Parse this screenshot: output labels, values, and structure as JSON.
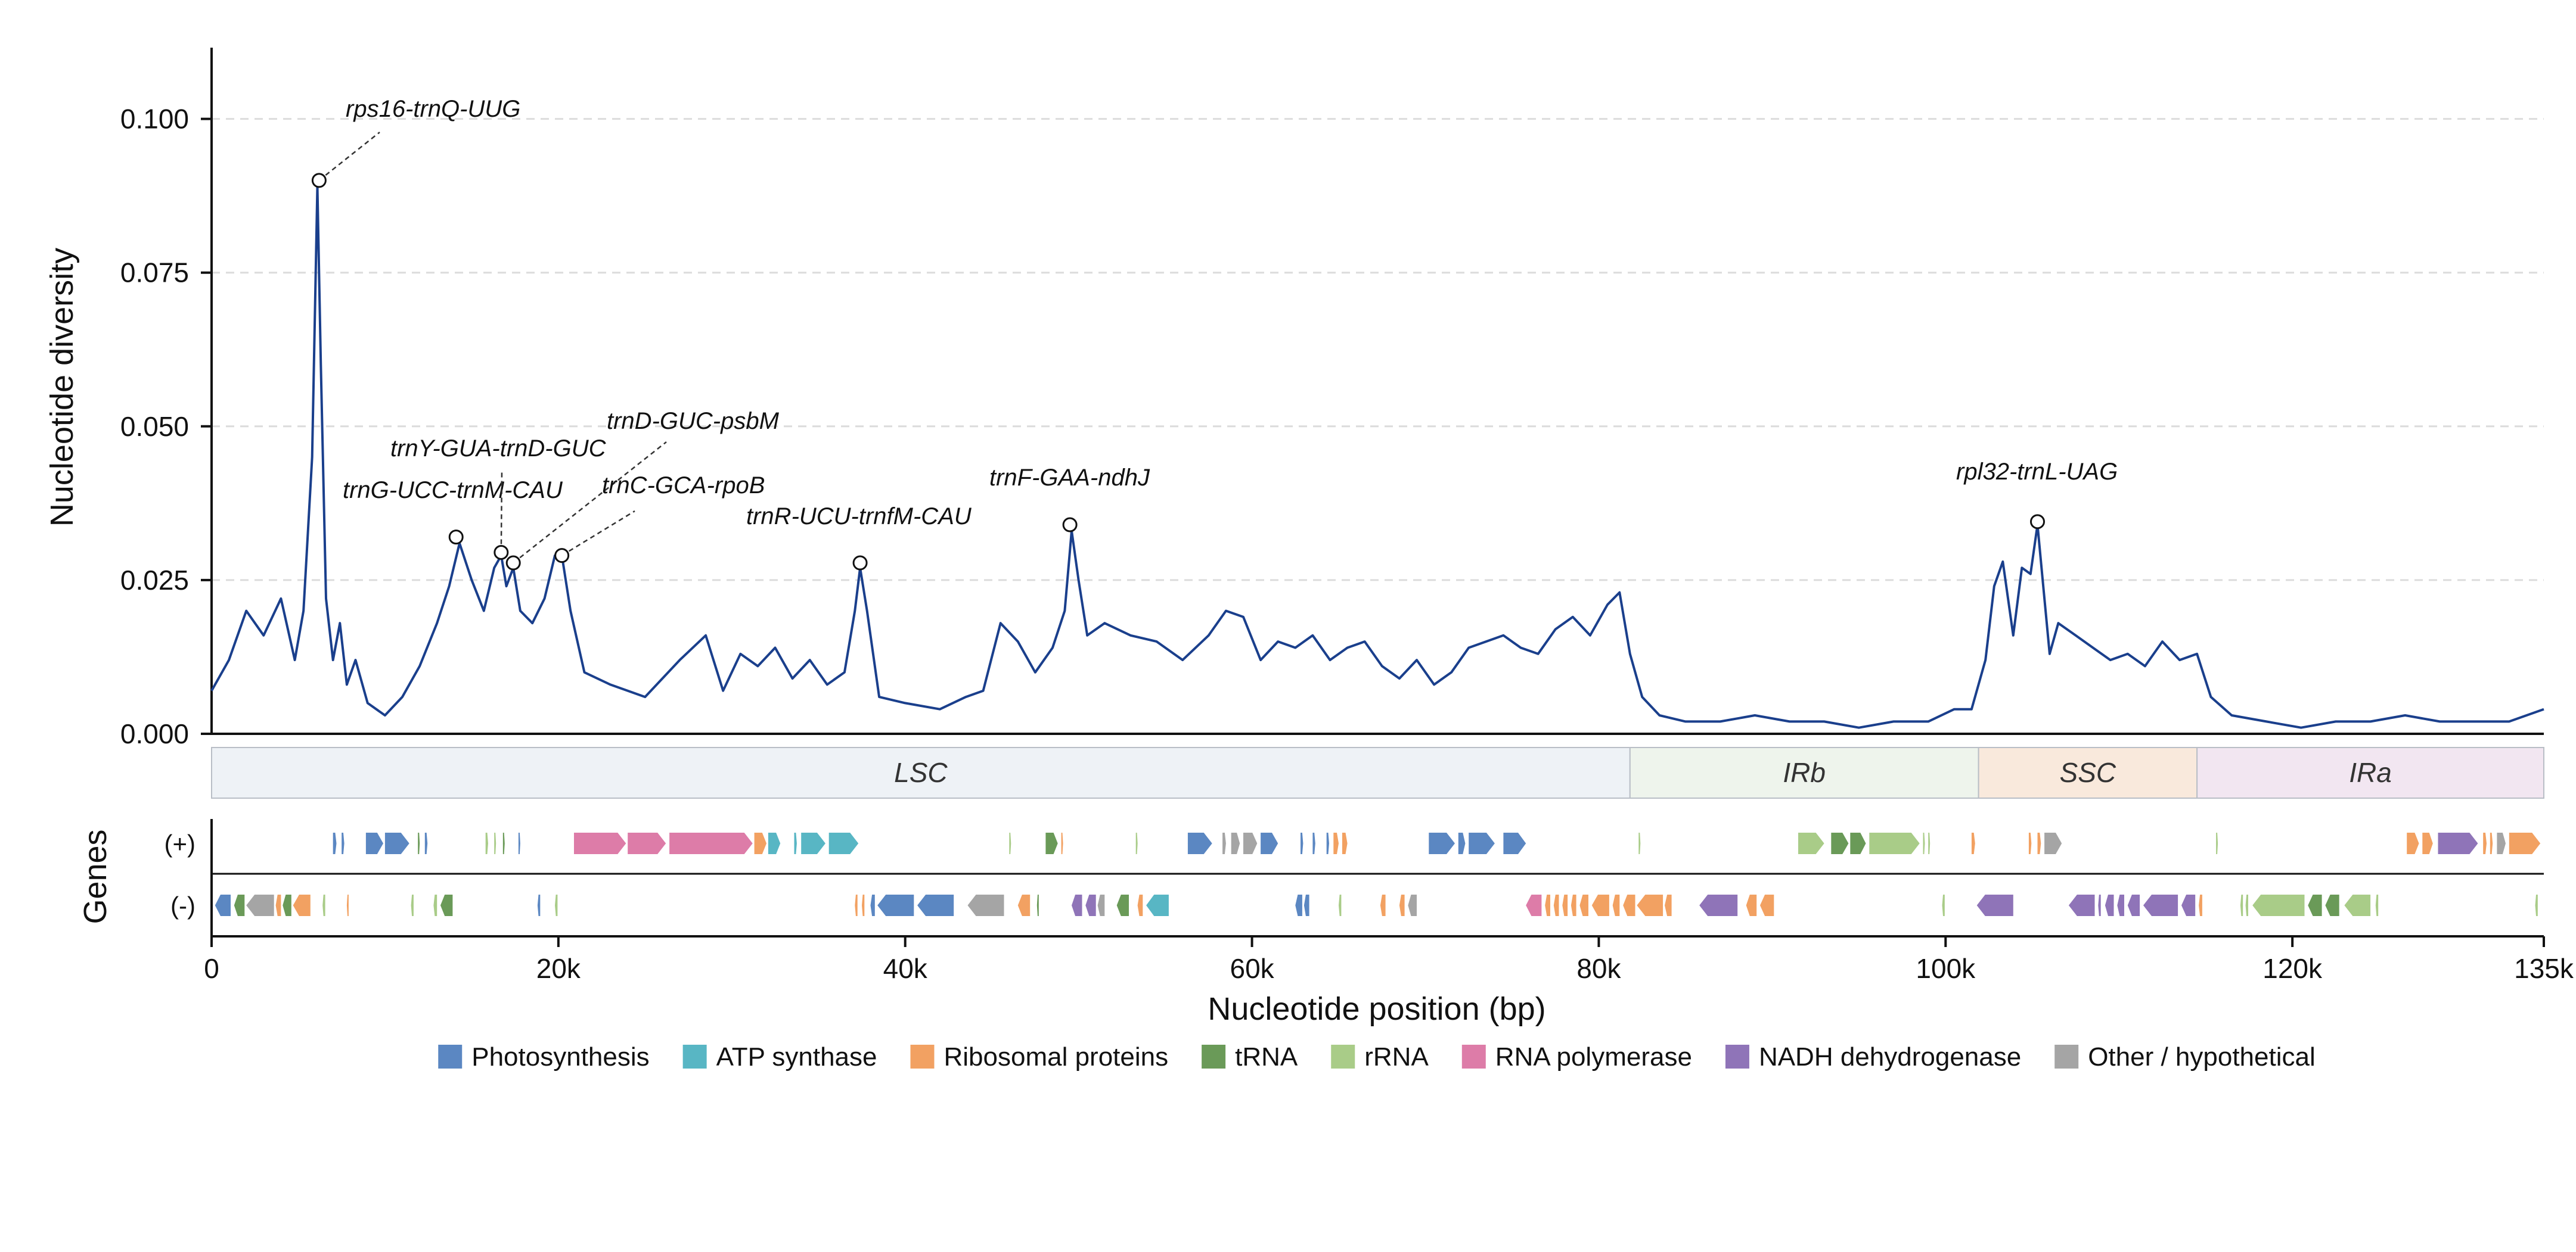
{
  "chart_data": {
    "type": "line",
    "title": "",
    "ylabel": "Nucleotide diversity",
    "xlabel": "Nucleotide position (bp)",
    "genes_label": "Genes",
    "strand_plus_label": "(+)",
    "strand_minus_label": "(-)",
    "xlim": [
      0,
      134500
    ],
    "ylim": [
      0,
      0.105
    ],
    "y_ticks": [
      {
        "value": 0.0,
        "label": "0.000"
      },
      {
        "value": 0.025,
        "label": "0.025"
      },
      {
        "value": 0.05,
        "label": "0.050"
      },
      {
        "value": 0.075,
        "label": "0.075"
      },
      {
        "value": 0.1,
        "label": "0.100"
      }
    ],
    "x_ticks": [
      {
        "value": 0,
        "label": "0"
      },
      {
        "value": 20000,
        "label": "20k"
      },
      {
        "value": 40000,
        "label": "40k"
      },
      {
        "value": 60000,
        "label": "60k"
      },
      {
        "value": 80000,
        "label": "80k"
      },
      {
        "value": 100000,
        "label": "100k"
      },
      {
        "value": 120000,
        "label": "120k"
      },
      {
        "value": 134500,
        "label": "135k"
      }
    ],
    "grid": "horizontal dashed",
    "line_color": "#1a3f8c",
    "series": [
      {
        "x": [
          0,
          1000,
          2000,
          3000,
          4000,
          4800,
          5300,
          5800,
          6100,
          6300,
          6600,
          7000,
          7400,
          7800,
          8300,
          9000,
          10000,
          11000,
          12000,
          13000,
          13700,
          14300,
          15000,
          15700,
          16300,
          16700,
          17000,
          17400,
          17800,
          18500,
          19200,
          19800,
          20200,
          20700,
          21500,
          23000,
          25000,
          27000,
          28500,
          29500,
          30500,
          31500,
          32500,
          33500,
          34500,
          35500,
          36500,
          37100,
          37400,
          37800,
          38500,
          40000,
          42000,
          43500,
          44500,
          45500,
          46500,
          47500,
          48500,
          49200,
          49600,
          50000,
          50500,
          51500,
          53000,
          54500,
          56000,
          57500,
          58500,
          59500,
          60500,
          61500,
          62500,
          63500,
          64500,
          65500,
          66500,
          67500,
          68500,
          69500,
          70500,
          71500,
          72500,
          73500,
          74500,
          75500,
          76500,
          77500,
          78500,
          79500,
          80500,
          81200,
          81800,
          82500,
          83500,
          85000,
          87000,
          89000,
          91000,
          93000,
          95000,
          97000,
          99000,
          100500,
          101500,
          102300,
          102800,
          103300,
          103900,
          104400,
          104900,
          105300,
          105600,
          106000,
          106500,
          107500,
          108500,
          109500,
          110500,
          111500,
          112500,
          113500,
          114500,
          115300,
          116500,
          118500,
          120500,
          122500,
          124500,
          126500,
          128500,
          130500,
          132500,
          134500
        ],
        "y": [
          0.007,
          0.012,
          0.02,
          0.016,
          0.022,
          0.012,
          0.02,
          0.045,
          0.089,
          0.06,
          0.022,
          0.012,
          0.018,
          0.008,
          0.012,
          0.005,
          0.003,
          0.006,
          0.011,
          0.018,
          0.024,
          0.031,
          0.025,
          0.02,
          0.027,
          0.029,
          0.024,
          0.027,
          0.02,
          0.018,
          0.022,
          0.029,
          0.029,
          0.02,
          0.01,
          0.008,
          0.006,
          0.012,
          0.016,
          0.007,
          0.013,
          0.011,
          0.014,
          0.009,
          0.012,
          0.008,
          0.01,
          0.02,
          0.027,
          0.02,
          0.006,
          0.005,
          0.004,
          0.006,
          0.007,
          0.018,
          0.015,
          0.01,
          0.014,
          0.02,
          0.033,
          0.025,
          0.016,
          0.018,
          0.016,
          0.015,
          0.012,
          0.016,
          0.02,
          0.019,
          0.012,
          0.015,
          0.014,
          0.016,
          0.012,
          0.014,
          0.015,
          0.011,
          0.009,
          0.012,
          0.008,
          0.01,
          0.014,
          0.015,
          0.016,
          0.014,
          0.013,
          0.017,
          0.019,
          0.016,
          0.021,
          0.023,
          0.013,
          0.006,
          0.003,
          0.002,
          0.002,
          0.003,
          0.002,
          0.002,
          0.001,
          0.002,
          0.002,
          0.004,
          0.004,
          0.012,
          0.024,
          0.028,
          0.016,
          0.027,
          0.026,
          0.034,
          0.025,
          0.013,
          0.018,
          0.016,
          0.014,
          0.012,
          0.013,
          0.011,
          0.015,
          0.012,
          0.013,
          0.006,
          0.003,
          0.002,
          0.001,
          0.002,
          0.002,
          0.003,
          0.002,
          0.002,
          0.002,
          0.004
        ]
      }
    ],
    "annotations": [
      {
        "label": "rps16-trnQ-UUG",
        "x": 6200,
        "y": 0.09
      },
      {
        "label": "trnG-UCC-trnM-CAU",
        "x": 14100,
        "y": 0.032
      },
      {
        "label": "trnY-GUA-trnD-GUC",
        "x": 16700,
        "y": 0.0295
      },
      {
        "label": "trnD-GUC-psbM",
        "x": 17400,
        "y": 0.0278
      },
      {
        "label": "trnC-GCA-rpoB",
        "x": 20200,
        "y": 0.029
      },
      {
        "label": "trnR-UCU-trnfM-CAU",
        "x": 37400,
        "y": 0.0278
      },
      {
        "label": "trnF-GAA-ndhJ",
        "x": 49500,
        "y": 0.034
      },
      {
        "label": "rpl32-trnL-UAG",
        "x": 105300,
        "y": 0.0345
      }
    ],
    "regions": [
      {
        "label": "LSC",
        "start": 0,
        "end": 81800,
        "color": "#eef2f6"
      },
      {
        "label": "IRb",
        "start": 81800,
        "end": 101900,
        "color": "#eef4ec"
      },
      {
        "label": "SSC",
        "start": 101900,
        "end": 114500,
        "color": "#f9e9dc"
      },
      {
        "label": "IRa",
        "start": 114500,
        "end": 134500,
        "color": "#f2e6f1"
      }
    ],
    "gene_categories": [
      {
        "key": "photo",
        "label": "Photosynthesis",
        "color": "#5b87c2"
      },
      {
        "key": "atp",
        "label": "ATP synthase",
        "color": "#58b6c4"
      },
      {
        "key": "ribo",
        "label": "Ribosomal proteins",
        "color": "#f2a162"
      },
      {
        "key": "trna",
        "label": "tRNA",
        "color": "#6a9a58"
      },
      {
        "key": "rrna",
        "label": "rRNA",
        "color": "#a9cc88"
      },
      {
        "key": "rnapol",
        "label": "RNA polymerase",
        "color": "#dd7ca8"
      },
      {
        "key": "ndh",
        "label": "NADH dehydrogenase",
        "color": "#8f74b8"
      },
      {
        "key": "other",
        "label": "Other / hypothetical",
        "color": "#a5a5a5"
      }
    ],
    "genes_plus": [
      {
        "s": 7000,
        "e": 7200,
        "c": "photo"
      },
      {
        "s": 7500,
        "e": 7650,
        "c": "photo"
      },
      {
        "s": 8900,
        "e": 9900,
        "c": "photo"
      },
      {
        "s": 10000,
        "e": 11400,
        "c": "photo"
      },
      {
        "s": 11900,
        "e": 12000,
        "c": "trna"
      },
      {
        "s": 12300,
        "e": 12450,
        "c": "photo"
      },
      {
        "s": 15800,
        "e": 15950,
        "c": "rrna"
      },
      {
        "s": 16300,
        "e": 16400,
        "c": "rrna"
      },
      {
        "s": 16800,
        "e": 16900,
        "c": "trna"
      },
      {
        "s": 17700,
        "e": 17800,
        "c": "photo"
      },
      {
        "s": 20900,
        "e": 23900,
        "c": "rnapol"
      },
      {
        "s": 24000,
        "e": 26200,
        "c": "rnapol"
      },
      {
        "s": 26400,
        "e": 31200,
        "c": "rnapol"
      },
      {
        "s": 31300,
        "e": 32000,
        "c": "ribo"
      },
      {
        "s": 32100,
        "e": 32800,
        "c": "atp"
      },
      {
        "s": 33600,
        "e": 33750,
        "c": "atp"
      },
      {
        "s": 34000,
        "e": 35400,
        "c": "atp"
      },
      {
        "s": 35600,
        "e": 37300,
        "c": "atp"
      },
      {
        "s": 46000,
        "e": 46100,
        "c": "rrna"
      },
      {
        "s": 48100,
        "e": 48800,
        "c": "trna"
      },
      {
        "s": 49000,
        "e": 49100,
        "c": "ribo"
      },
      {
        "s": 53300,
        "e": 53400,
        "c": "rrna"
      },
      {
        "s": 56300,
        "e": 57700,
        "c": "photo"
      },
      {
        "s": 58300,
        "e": 58500,
        "c": "other"
      },
      {
        "s": 58800,
        "e": 59300,
        "c": "other"
      },
      {
        "s": 59500,
        "e": 60300,
        "c": "other"
      },
      {
        "s": 60500,
        "e": 61500,
        "c": "photo"
      },
      {
        "s": 62800,
        "e": 62950,
        "c": "photo"
      },
      {
        "s": 63500,
        "e": 63650,
        "c": "photo"
      },
      {
        "s": 64300,
        "e": 64450,
        "c": "photo"
      },
      {
        "s": 64700,
        "e": 65000,
        "c": "ribo"
      },
      {
        "s": 65200,
        "e": 65500,
        "c": "ribo"
      },
      {
        "s": 70200,
        "e": 71700,
        "c": "photo"
      },
      {
        "s": 71900,
        "e": 72300,
        "c": "photo"
      },
      {
        "s": 72500,
        "e": 74000,
        "c": "photo"
      },
      {
        "s": 74500,
        "e": 75800,
        "c": "photo"
      },
      {
        "s": 82300,
        "e": 82400,
        "c": "rrna"
      },
      {
        "s": 91500,
        "e": 93000,
        "c": "rrna"
      },
      {
        "s": 93400,
        "e": 94400,
        "c": "trna"
      },
      {
        "s": 94500,
        "e": 95400,
        "c": "trna"
      },
      {
        "s": 95600,
        "e": 98500,
        "c": "rrna"
      },
      {
        "s": 98700,
        "e": 98800,
        "c": "rrna"
      },
      {
        "s": 99000,
        "e": 99100,
        "c": "rrna"
      },
      {
        "s": 101500,
        "e": 101700,
        "c": "ribo"
      },
      {
        "s": 104800,
        "e": 104950,
        "c": "ribo"
      },
      {
        "s": 105300,
        "e": 105500,
        "c": "ribo"
      },
      {
        "s": 105700,
        "e": 106700,
        "c": "other"
      },
      {
        "s": 115600,
        "e": 115700,
        "c": "rrna"
      },
      {
        "s": 126600,
        "e": 127300,
        "c": "ribo"
      },
      {
        "s": 127500,
        "e": 128100,
        "c": "ribo"
      },
      {
        "s": 128400,
        "e": 130700,
        "c": "ndh"
      },
      {
        "s": 131000,
        "e": 131200,
        "c": "ribo"
      },
      {
        "s": 131400,
        "e": 131550,
        "c": "ribo"
      },
      {
        "s": 131800,
        "e": 132300,
        "c": "other"
      },
      {
        "s": 132500,
        "e": 134300,
        "c": "ribo"
      }
    ],
    "genes_minus": [
      {
        "s": 200,
        "e": 1100,
        "c": "photo"
      },
      {
        "s": 1300,
        "e": 1900,
        "c": "trna"
      },
      {
        "s": 2000,
        "e": 3600,
        "c": "other"
      },
      {
        "s": 3700,
        "e": 4000,
        "c": "ribo"
      },
      {
        "s": 4100,
        "e": 4600,
        "c": "trna"
      },
      {
        "s": 4700,
        "e": 5700,
        "c": "ribo"
      },
      {
        "s": 6400,
        "e": 6550,
        "c": "rrna"
      },
      {
        "s": 7800,
        "e": 7900,
        "c": "ribo"
      },
      {
        "s": 11500,
        "e": 11650,
        "c": "rrna"
      },
      {
        "s": 12800,
        "e": 13000,
        "c": "rrna"
      },
      {
        "s": 13200,
        "e": 13900,
        "c": "trna"
      },
      {
        "s": 18800,
        "e": 18950,
        "c": "photo"
      },
      {
        "s": 19800,
        "e": 19950,
        "c": "rrna"
      },
      {
        "s": 37100,
        "e": 37250,
        "c": "ribo"
      },
      {
        "s": 37500,
        "e": 37650,
        "c": "ribo"
      },
      {
        "s": 38000,
        "e": 38250,
        "c": "photo"
      },
      {
        "s": 38400,
        "e": 40500,
        "c": "photo"
      },
      {
        "s": 40700,
        "e": 42800,
        "c": "photo"
      },
      {
        "s": 43600,
        "e": 45700,
        "c": "other"
      },
      {
        "s": 46500,
        "e": 47200,
        "c": "ribo"
      },
      {
        "s": 47600,
        "e": 47700,
        "c": "trna"
      },
      {
        "s": 49600,
        "e": 50200,
        "c": "ndh"
      },
      {
        "s": 50400,
        "e": 51000,
        "c": "ndh"
      },
      {
        "s": 51100,
        "e": 51500,
        "c": "other"
      },
      {
        "s": 52200,
        "e": 52900,
        "c": "trna"
      },
      {
        "s": 53400,
        "e": 53700,
        "c": "ribo"
      },
      {
        "s": 53900,
        "e": 55200,
        "c": "atp"
      },
      {
        "s": 62500,
        "e": 62900,
        "c": "photo"
      },
      {
        "s": 63000,
        "e": 63300,
        "c": "photo"
      },
      {
        "s": 65000,
        "e": 65150,
        "c": "rrna"
      },
      {
        "s": 67400,
        "e": 67700,
        "c": "ribo"
      },
      {
        "s": 68500,
        "e": 68800,
        "c": "ribo"
      },
      {
        "s": 69000,
        "e": 69500,
        "c": "other"
      },
      {
        "s": 75800,
        "e": 76700,
        "c": "rnapol"
      },
      {
        "s": 76900,
        "e": 77200,
        "c": "ribo"
      },
      {
        "s": 77400,
        "e": 77700,
        "c": "ribo"
      },
      {
        "s": 77900,
        "e": 78200,
        "c": "ribo"
      },
      {
        "s": 78400,
        "e": 78700,
        "c": "ribo"
      },
      {
        "s": 78900,
        "e": 79400,
        "c": "ribo"
      },
      {
        "s": 79600,
        "e": 80600,
        "c": "ribo"
      },
      {
        "s": 80800,
        "e": 81200,
        "c": "ribo"
      },
      {
        "s": 81400,
        "e": 82100,
        "c": "ribo"
      },
      {
        "s": 82200,
        "e": 83700,
        "c": "ribo"
      },
      {
        "s": 83800,
        "e": 84200,
        "c": "ribo"
      },
      {
        "s": 85800,
        "e": 88000,
        "c": "ndh"
      },
      {
        "s": 88500,
        "e": 89100,
        "c": "ribo"
      },
      {
        "s": 89300,
        "e": 90100,
        "c": "ribo"
      },
      {
        "s": 99800,
        "e": 99950,
        "c": "rrna"
      },
      {
        "s": 101800,
        "e": 103900,
        "c": "ndh"
      },
      {
        "s": 107100,
        "e": 108600,
        "c": "ndh"
      },
      {
        "s": 108800,
        "e": 108950,
        "c": "ndh"
      },
      {
        "s": 109200,
        "e": 109700,
        "c": "ndh"
      },
      {
        "s": 109900,
        "e": 110300,
        "c": "ndh"
      },
      {
        "s": 110500,
        "e": 111200,
        "c": "ndh"
      },
      {
        "s": 111400,
        "e": 113400,
        "c": "ndh"
      },
      {
        "s": 113600,
        "e": 114400,
        "c": "ndh"
      },
      {
        "s": 114600,
        "e": 114800,
        "c": "ribo"
      },
      {
        "s": 117000,
        "e": 117150,
        "c": "rrna"
      },
      {
        "s": 117300,
        "e": 117450,
        "c": "rrna"
      },
      {
        "s": 117700,
        "e": 120700,
        "c": "rrna"
      },
      {
        "s": 120900,
        "e": 121700,
        "c": "trna"
      },
      {
        "s": 121900,
        "e": 122700,
        "c": "trna"
      },
      {
        "s": 123000,
        "e": 124500,
        "c": "rrna"
      },
      {
        "s": 124800,
        "e": 124950,
        "c": "rrna"
      },
      {
        "s": 134000,
        "e": 134150,
        "c": "rrna"
      }
    ]
  }
}
